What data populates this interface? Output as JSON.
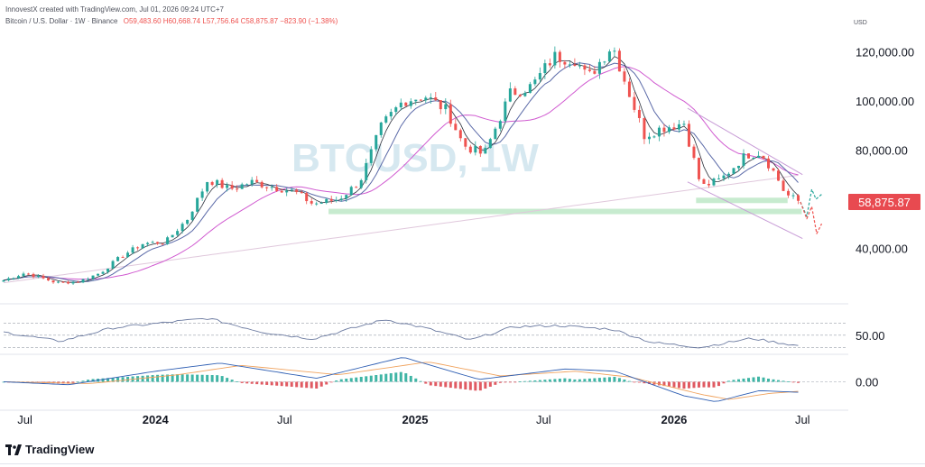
{
  "header": {
    "author": "InnovestX created with TradingView.com, Jul 01, 2026 09:24 UTC+7",
    "symbol": "Bitcoin / U.S. Dollar · 1W · Binance",
    "o": "O59,483.60",
    "h": "H60,668.74",
    "l": "L57,756.64",
    "c": "C58,875.87",
    "chg": "−823.90 (−1.38%)"
  },
  "watermark": "BTCUSD, 1W",
  "brand": "TradingView",
  "colors": {
    "up": "#26a69a",
    "down": "#ef5350",
    "ma_fast": "#2a2e39",
    "ma_slow": "#5b6aa8",
    "ma_50": "#d05ad0",
    "ma_200": "#e0c8dc",
    "trend": "#c79bd6",
    "support": "#b9e6c3",
    "price_label": "#e84a50",
    "rsi": "#6b7aa0",
    "macd_line": "#2f5fb3",
    "signal_line": "#f0a35e",
    "watermark": "#d6e8f0"
  },
  "chart_data": {
    "type": "candlestick",
    "title": "",
    "price_axis": {
      "unit": "USD",
      "ticks": [
        {
          "value": 120000,
          "label": "120,000.00"
        },
        {
          "value": 100000,
          "label": "100,000.00"
        },
        {
          "value": 80000,
          "label": "80,000.00"
        },
        {
          "value": 40000,
          "label": "40,000.00"
        }
      ],
      "current_price": 58875.87,
      "current_label": "58,875.87",
      "range": [
        20000,
        130000
      ]
    },
    "time_axis": {
      "labels": [
        {
          "label": "Jul",
          "date": "2023-07-01"
        },
        {
          "label": "2024",
          "date": "2024-01-01"
        },
        {
          "label": "Jul",
          "date": "2024-07-01"
        },
        {
          "label": "2025",
          "date": "2025-01-01"
        },
        {
          "label": "Jul",
          "date": "2025-07-01"
        },
        {
          "label": "2026",
          "date": "2026-01-01"
        },
        {
          "label": "Jul",
          "date": "2026-07-01"
        }
      ]
    },
    "price_path": [
      {
        "date": "2023-06-01",
        "price": 27000
      },
      {
        "date": "2023-07-01",
        "price": 30000
      },
      {
        "date": "2023-08-15",
        "price": 26000
      },
      {
        "date": "2023-09-15",
        "price": 26500
      },
      {
        "date": "2023-10-15",
        "price": 30000
      },
      {
        "date": "2023-11-15",
        "price": 37000
      },
      {
        "date": "2023-12-15",
        "price": 42000
      },
      {
        "date": "2024-01-15",
        "price": 42500
      },
      {
        "date": "2024-02-15",
        "price": 52000
      },
      {
        "date": "2024-03-15",
        "price": 68000
      },
      {
        "date": "2024-04-15",
        "price": 64000
      },
      {
        "date": "2024-05-15",
        "price": 67000
      },
      {
        "date": "2024-06-15",
        "price": 65000
      },
      {
        "date": "2024-07-15",
        "price": 63000
      },
      {
        "date": "2024-08-10",
        "price": 58000
      },
      {
        "date": "2024-09-15",
        "price": 60000
      },
      {
        "date": "2024-10-15",
        "price": 67000
      },
      {
        "date": "2024-11-15",
        "price": 90000
      },
      {
        "date": "2024-12-15",
        "price": 100000
      },
      {
        "date": "2025-01-15",
        "price": 102000
      },
      {
        "date": "2025-02-15",
        "price": 96000
      },
      {
        "date": "2025-03-10",
        "price": 82000
      },
      {
        "date": "2025-04-08",
        "price": 78000
      },
      {
        "date": "2025-05-15",
        "price": 103000
      },
      {
        "date": "2025-06-15",
        "price": 106000
      },
      {
        "date": "2025-07-15",
        "price": 118000
      },
      {
        "date": "2025-08-15",
        "price": 117000
      },
      {
        "date": "2025-09-01",
        "price": 109000
      },
      {
        "date": "2025-10-06",
        "price": 123000
      },
      {
        "date": "2025-10-20",
        "price": 111000
      },
      {
        "date": "2025-11-20",
        "price": 86000
      },
      {
        "date": "2025-12-15",
        "price": 89000
      },
      {
        "date": "2026-01-15",
        "price": 91000
      },
      {
        "date": "2026-02-08",
        "price": 65000
      },
      {
        "date": "2026-03-08",
        "price": 68000
      },
      {
        "date": "2026-04-12",
        "price": 78000
      },
      {
        "date": "2026-05-03",
        "price": 79000
      },
      {
        "date": "2026-05-24",
        "price": 70000
      },
      {
        "date": "2026-06-07",
        "price": 62000
      },
      {
        "date": "2026-06-28",
        "price": 58876
      }
    ],
    "moving_averages": [
      {
        "name": "MA fast",
        "type": "line"
      },
      {
        "name": "MA slow",
        "type": "line"
      },
      {
        "name": "MA 50",
        "type": "line"
      },
      {
        "name": "MA 200",
        "type": "line"
      }
    ],
    "annotations": {
      "support_zone": [
        {
          "from": "2024-09-01",
          "to": "2026-06-30",
          "value": 55000
        }
      ],
      "support_zone_2": [
        {
          "from": "2026-02-01",
          "to": "2026-06-10",
          "value": 59500
        }
      ],
      "descending_channel_upper": [
        {
          "date": "2026-01-20",
          "price": 97000
        },
        {
          "date": "2026-07-01",
          "price": 70000
        }
      ],
      "descending_channel_lower": [
        {
          "date": "2026-01-20",
          "price": 67000
        },
        {
          "date": "2026-07-01",
          "price": 44000
        }
      ],
      "projection_up": [
        {
          "date": "2026-06-28",
          "price": 58876
        },
        {
          "date": "2026-07-07",
          "price": 53000
        },
        {
          "date": "2026-07-14",
          "price": 64000
        },
        {
          "date": "2026-07-20",
          "price": 60000
        },
        {
          "date": "2026-07-28",
          "price": 62000
        }
      ],
      "projection_down": [
        {
          "date": "2026-06-28",
          "price": 58876
        },
        {
          "date": "2026-07-07",
          "price": 52000
        },
        {
          "date": "2026-07-14",
          "price": 57000
        },
        {
          "date": "2026-07-21",
          "price": 46000
        },
        {
          "date": "2026-07-28",
          "price": 50000
        }
      ]
    },
    "rsi": {
      "label": "50.00",
      "levels": [
        70,
        50,
        30
      ],
      "path": [
        {
          "date": "2023-06-01",
          "value": 55
        },
        {
          "date": "2023-08-20",
          "value": 40
        },
        {
          "date": "2023-11-01",
          "value": 62
        },
        {
          "date": "2024-03-15",
          "value": 78
        },
        {
          "date": "2024-06-01",
          "value": 55
        },
        {
          "date": "2024-08-10",
          "value": 44
        },
        {
          "date": "2024-11-20",
          "value": 76
        },
        {
          "date": "2025-01-15",
          "value": 62
        },
        {
          "date": "2025-03-20",
          "value": 42
        },
        {
          "date": "2025-05-20",
          "value": 64
        },
        {
          "date": "2025-07-20",
          "value": 66
        },
        {
          "date": "2025-10-06",
          "value": 60
        },
        {
          "date": "2025-12-01",
          "value": 38
        },
        {
          "date": "2026-02-08",
          "value": 30
        },
        {
          "date": "2026-04-20",
          "value": 45
        },
        {
          "date": "2026-06-28",
          "value": 32
        }
      ]
    },
    "macd": {
      "label": "0.00",
      "macd_path": [
        {
          "date": "2023-06-01",
          "value": 0
        },
        {
          "date": "2023-09-01",
          "value": -0.5
        },
        {
          "date": "2024-01-01",
          "value": 1.8
        },
        {
          "date": "2024-04-01",
          "value": 3.2
        },
        {
          "date": "2024-08-15",
          "value": 0.6
        },
        {
          "date": "2024-12-15",
          "value": 4.2
        },
        {
          "date": "2025-04-01",
          "value": 0.4
        },
        {
          "date": "2025-08-01",
          "value": 2.2
        },
        {
          "date": "2025-10-10",
          "value": 1.8
        },
        {
          "date": "2026-01-15",
          "value": -2.4
        },
        {
          "date": "2026-03-01",
          "value": -3.4
        },
        {
          "date": "2026-05-01",
          "value": -1.5
        },
        {
          "date": "2026-06-28",
          "value": -1.8
        }
      ],
      "signal_path": [
        {
          "date": "2023-06-01",
          "value": 0
        },
        {
          "date": "2023-10-01",
          "value": -0.3
        },
        {
          "date": "2024-02-01",
          "value": 1.2
        },
        {
          "date": "2024-05-01",
          "value": 2.8
        },
        {
          "date": "2024-09-15",
          "value": 1.2
        },
        {
          "date": "2025-01-20",
          "value": 3.4
        },
        {
          "date": "2025-05-01",
          "value": 1.0
        },
        {
          "date": "2025-08-15",
          "value": 1.8
        },
        {
          "date": "2025-11-01",
          "value": 0.8
        },
        {
          "date": "2026-02-10",
          "value": -2.2
        },
        {
          "date": "2026-03-20",
          "value": -3.0
        },
        {
          "date": "2026-05-15",
          "value": -2.0
        },
        {
          "date": "2026-06-28",
          "value": -1.6
        }
      ]
    }
  }
}
